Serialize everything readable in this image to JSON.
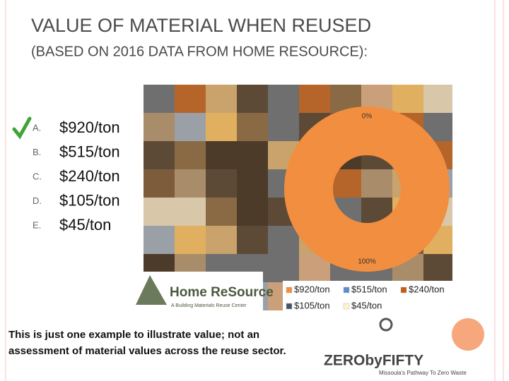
{
  "title": "VALUE OF MATERIAL WHEN REUSED",
  "subtitle": "(BASED ON 2016 DATA FROM HOME RESOURCE):",
  "options": [
    {
      "letter": "A.",
      "text": "$920/ton"
    },
    {
      "letter": "B.",
      "text": "$515/ton"
    },
    {
      "letter": "C.",
      "text": "$240/ton"
    },
    {
      "letter": "D.",
      "text": "$105/ton"
    },
    {
      "letter": "E.",
      "text": "$45/ton"
    }
  ],
  "footnote": "This is just one example to illustrate value; not an assessment of material values across the reuse sector.",
  "logos": {
    "home_resource": "Home ReSource",
    "home_resource_tagline": "A Building Materials Reuse Center",
    "zero": "ZERObyFIFTY",
    "zero_tagline": "Missoula's Pathway To Zero Waste"
  },
  "chart_data": {
    "type": "donut",
    "categories": [
      "$920/ton",
      "$515/ton",
      "$240/ton",
      "$105/ton",
      "$45/ton"
    ],
    "values": [
      100,
      0,
      0,
      0,
      0
    ],
    "value_labels": [
      "100%",
      "0%",
      null,
      null,
      null
    ],
    "colors": [
      "#f28e3f",
      "#5b8bd0",
      "#c55a11",
      "#44546a",
      "#fff2cc"
    ],
    "legend": "bottom"
  }
}
